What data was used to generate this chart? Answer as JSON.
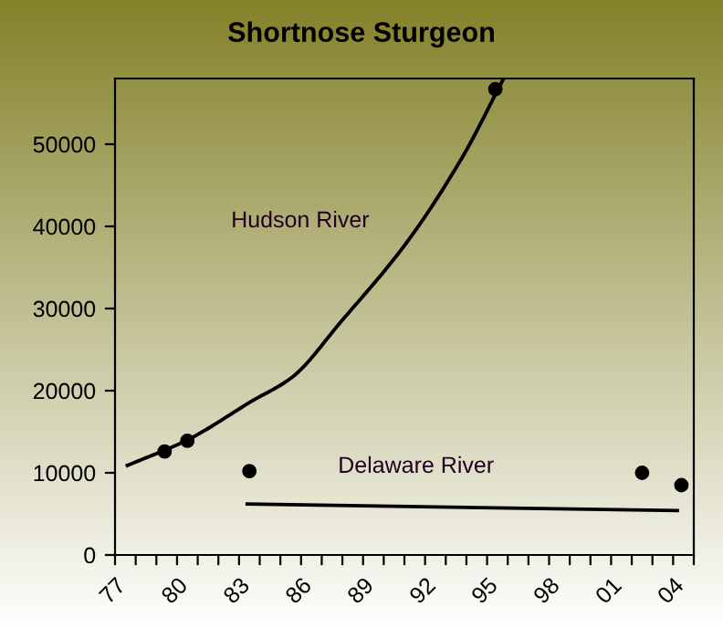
{
  "chart_data": {
    "type": "scatter",
    "title": "Shortnose Sturgeon",
    "xlim": [
      1977,
      2005
    ],
    "ylim": [
      0,
      58000
    ],
    "xticks": [
      {
        "value": 1977,
        "label": "77"
      },
      {
        "value": 1978,
        "label": null
      },
      {
        "value": 1979,
        "label": null
      },
      {
        "value": 1980,
        "label": "80"
      },
      {
        "value": 1981,
        "label": null
      },
      {
        "value": 1982,
        "label": null
      },
      {
        "value": 1983,
        "label": "83"
      },
      {
        "value": 1984,
        "label": null
      },
      {
        "value": 1985,
        "label": null
      },
      {
        "value": 1986,
        "label": "86"
      },
      {
        "value": 1987,
        "label": null
      },
      {
        "value": 1988,
        "label": null
      },
      {
        "value": 1989,
        "label": "89"
      },
      {
        "value": 1990,
        "label": null
      },
      {
        "value": 1991,
        "label": null
      },
      {
        "value": 1992,
        "label": "92"
      },
      {
        "value": 1993,
        "label": null
      },
      {
        "value": 1994,
        "label": null
      },
      {
        "value": 1995,
        "label": "95"
      },
      {
        "value": 1996,
        "label": null
      },
      {
        "value": 1997,
        "label": null
      },
      {
        "value": 1998,
        "label": "98"
      },
      {
        "value": 1999,
        "label": null
      },
      {
        "value": 2000,
        "label": null
      },
      {
        "value": 2001,
        "label": "01"
      },
      {
        "value": 2002,
        "label": null
      },
      {
        "value": 2003,
        "label": null
      },
      {
        "value": 2004,
        "label": "04"
      },
      {
        "value": 2005,
        "label": null
      }
    ],
    "yticks": [
      0,
      10000,
      20000,
      30000,
      40000,
      50000
    ],
    "grid": false,
    "series": [
      {
        "marker": "circle",
        "color": "#000000",
        "x": [
          1979.4,
          1980.5,
          1995.4
        ],
        "values": [
          12600,
          13900,
          56700
        ]
      },
      {
        "marker": "circle",
        "color": "#000000",
        "x": [
          1983.5,
          2002.5,
          2004.4
        ],
        "values": [
          10200,
          10000,
          8500
        ]
      },
      {
        "type": "line",
        "marker": "none",
        "color": "#000000",
        "x": [
          1977.6,
          1980.5,
          1983.6,
          1985.6,
          1987.9,
          1991.1,
          1993.8,
          1995.8
        ],
        "values": [
          10900,
          14000,
          18700,
          21700,
          28300,
          38000,
          48400,
          58000
        ]
      },
      {
        "type": "line",
        "marker": "none",
        "color": "#000000",
        "x": [
          1983.4,
          2004.2
        ],
        "values": [
          6200,
          5400
        ]
      }
    ],
    "annotations": [
      "Hudson River",
      "Delaware River"
    ]
  }
}
